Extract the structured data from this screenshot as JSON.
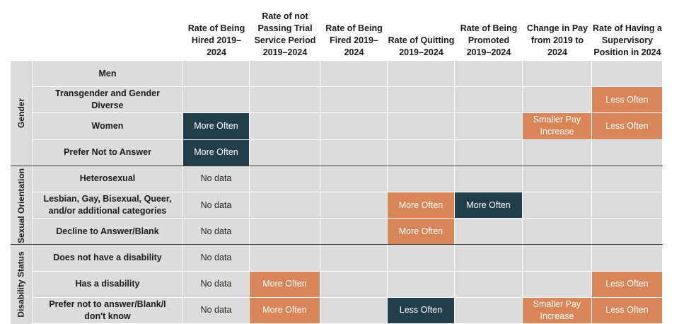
{
  "chart_data": {
    "type": "table",
    "columns": [
      "Rate of Being Hired 2019–2024",
      "Rate of not Passing Trial Service Period 2019–2024",
      "Rate of Being Fired 2019–2024",
      "Rate of Quitting 2019–2024",
      "Rate of Being Promoted 2019–2024",
      "Change in Pay from 2019 to 2024",
      "Rate of Having a Supervisory Position in 2024"
    ],
    "groups": [
      {
        "name": "Gender",
        "rows": [
          {
            "label": "Men",
            "cells": [
              "",
              "",
              "",
              "",
              "",
              "",
              ""
            ]
          },
          {
            "label": "Transgender and Gender Diverse",
            "cells": [
              "",
              "",
              "",
              "",
              "",
              "",
              "Less Often"
            ]
          },
          {
            "label": "Women",
            "cells": [
              "More Often",
              "",
              "",
              "",
              "",
              "Smaller Pay Increase",
              "Less Often"
            ]
          },
          {
            "label": "Prefer Not to Answer",
            "cells": [
              "More Often",
              "",
              "",
              "",
              "",
              "",
              ""
            ]
          }
        ]
      },
      {
        "name": "Sexual Orientation",
        "rows": [
          {
            "label": "Heterosexual",
            "cells": [
              "No data",
              "",
              "",
              "",
              "",
              "",
              ""
            ]
          },
          {
            "label": "Lesbian, Gay, Bisexual, Queer, and/or additional categories",
            "cells": [
              "No data",
              "",
              "",
              "More Often",
              "More Often",
              "",
              ""
            ]
          },
          {
            "label": "Decline to Answer/Blank",
            "cells": [
              "No data",
              "",
              "",
              "More Often",
              "",
              "",
              ""
            ]
          }
        ]
      },
      {
        "name": "Disability Status",
        "rows": [
          {
            "label": "Does not have a disability",
            "cells": [
              "No data",
              "",
              "",
              "",
              "",
              "",
              ""
            ]
          },
          {
            "label": "Has a disability",
            "cells": [
              "No data",
              "More Often",
              "",
              "",
              "",
              "",
              "Less Often"
            ]
          },
          {
            "label": "Prefer not to answer/Blank/I don't know",
            "cells": [
              "No data",
              "More Often",
              "",
              "Less Often",
              "",
              "Smaller Pay Increase",
              "Less Often"
            ]
          }
        ]
      }
    ],
    "cell_colors": {
      "0-2-0": "#213e4d",
      "0-3-0": "#213e4d",
      "0-1-6": "#d98557",
      "0-2-5": "#d98557",
      "0-2-6": "#d98557",
      "1-1-3": "#d98557",
      "1-1-4": "#213e4d",
      "1-2-3": "#d98557",
      "2-1-1": "#d98557",
      "2-1-6": "#d98557",
      "2-2-1": "#d98557",
      "2-2-3": "#213e4d",
      "2-2-5": "#d98557",
      "2-2-6": "#d98557"
    },
    "colors": {
      "orange": "#d98557",
      "dark": "#213e4d",
      "empty": "#dcdcdc",
      "divider": "#3a3a3a"
    }
  }
}
